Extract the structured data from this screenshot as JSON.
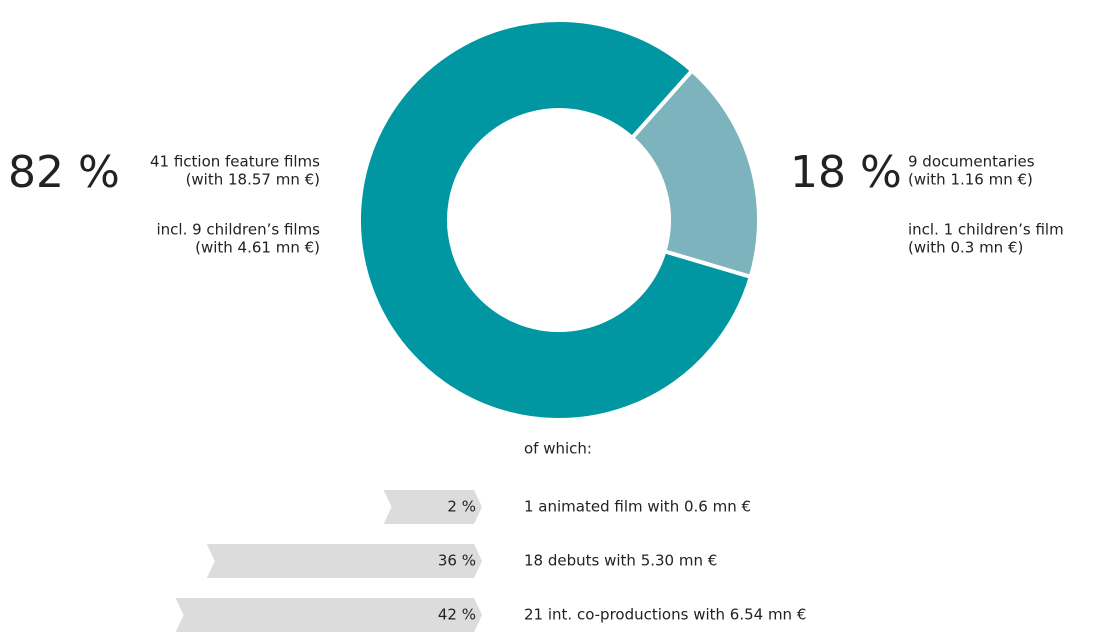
{
  "chart_data": [
    {
      "type": "pie",
      "categories": [
        "41 fiction feature films",
        "9 documentaries"
      ],
      "values": [
        82,
        18
      ],
      "value_labels": [
        "82 %",
        "18 %"
      ],
      "colors": [
        "#0097a3",
        "#7db3bd"
      ],
      "annotations": [
        [
          "(with 18.57 mn €)",
          "incl. 9 children’s films",
          "(with 4.61 mn €)"
        ],
        [
          "(with 1.16 mn €)",
          "incl. 1 children’s film",
          "(with 0.3 mn €)"
        ]
      ]
    },
    {
      "type": "bar",
      "title": "of which:",
      "categories": [
        "1 animated film with 0.6 mn €",
        "18 debuts with 5.30 mn €",
        "21 int. co-productions with 6.54 mn €"
      ],
      "values": [
        2,
        36,
        42
      ],
      "value_labels": [
        "2 %",
        "36 %",
        "42 %"
      ],
      "color": "#dcdcdc"
    }
  ]
}
